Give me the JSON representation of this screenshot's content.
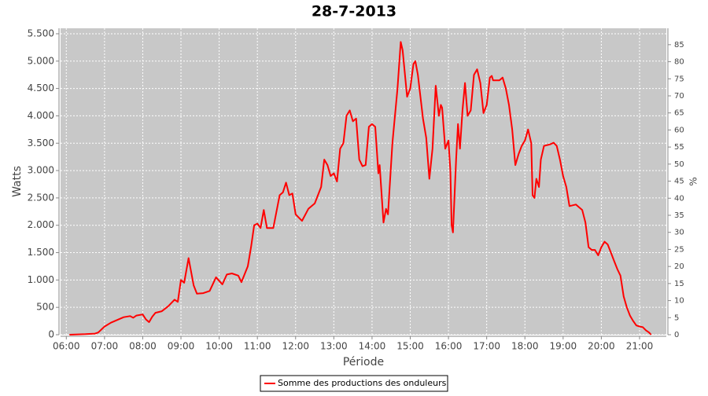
{
  "chart_data": {
    "type": "line",
    "title": "28-7-2013",
    "xlabel": "Période",
    "ylabel": "Watts",
    "y2label": "%",
    "x": [
      "06:05",
      "06:30",
      "06:45",
      "06:50",
      "07:00",
      "07:10",
      "07:20",
      "07:30",
      "07:40",
      "07:45",
      "07:50",
      "08:00",
      "08:05",
      "08:10",
      "08:15",
      "08:20",
      "08:30",
      "08:40",
      "08:50",
      "08:55",
      "09:00",
      "09:05",
      "09:12",
      "09:20",
      "09:25",
      "09:35",
      "09:45",
      "09:55",
      "10:05",
      "10:12",
      "10:20",
      "10:30",
      "10:35",
      "10:45",
      "10:50",
      "10:55",
      "11:00",
      "11:05",
      "11:10",
      "11:15",
      "11:25",
      "11:35",
      "11:40",
      "11:45",
      "11:50",
      "11:55",
      "12:00",
      "12:10",
      "12:20",
      "12:30",
      "12:40",
      "12:45",
      "12:50",
      "12:55",
      "13:00",
      "13:05",
      "13:10",
      "13:15",
      "13:20",
      "13:25",
      "13:30",
      "13:35",
      "13:40",
      "13:45",
      "13:50",
      "13:55",
      "14:00",
      "14:05",
      "14:10",
      "14:12",
      "14:18",
      "14:22",
      "14:25",
      "14:32",
      "14:40",
      "14:45",
      "14:48",
      "14:55",
      "15:00",
      "15:05",
      "15:08",
      "15:12",
      "15:20",
      "15:25",
      "15:30",
      "15:35",
      "15:40",
      "15:45",
      "15:48",
      "15:50",
      "15:55",
      "16:00",
      "16:03",
      "16:05",
      "16:07",
      "16:12",
      "16:15",
      "16:18",
      "16:22",
      "16:26",
      "16:30",
      "16:35",
      "16:40",
      "16:45",
      "16:50",
      "16:55",
      "17:00",
      "17:05",
      "17:08",
      "17:10",
      "17:20",
      "17:25",
      "17:30",
      "17:35",
      "17:40",
      "17:45",
      "17:50",
      "17:55",
      "18:00",
      "18:05",
      "18:10",
      "18:12",
      "18:15",
      "18:18",
      "18:22",
      "18:25",
      "18:30",
      "18:40",
      "18:45",
      "18:50",
      "18:55",
      "19:00",
      "19:05",
      "19:10",
      "19:20",
      "19:30",
      "19:35",
      "19:40",
      "19:45",
      "19:50",
      "19:55",
      "20:00",
      "20:05",
      "20:10",
      "20:15",
      "20:20",
      "20:25",
      "20:30",
      "20:35",
      "20:40",
      "20:45",
      "20:50",
      "20:55",
      "21:00",
      "21:05",
      "21:10",
      "21:15",
      "21:18"
    ],
    "series": [
      {
        "name": "Somme des productions des onduleurs",
        "color": "#ff0000",
        "values": [
          0,
          10,
          20,
          40,
          150,
          220,
          270,
          320,
          340,
          310,
          350,
          370,
          280,
          230,
          330,
          400,
          430,
          520,
          640,
          600,
          1000,
          950,
          1400,
          900,
          750,
          760,
          800,
          1050,
          920,
          1100,
          1120,
          1080,
          960,
          1250,
          1600,
          2000,
          2030,
          1950,
          2280,
          1950,
          1950,
          2550,
          2600,
          2780,
          2550,
          2580,
          2200,
          2080,
          2300,
          2400,
          2700,
          3200,
          3100,
          2900,
          2950,
          2800,
          3400,
          3500,
          4000,
          4100,
          3900,
          3950,
          3200,
          3080,
          3100,
          3800,
          3850,
          3800,
          2950,
          3100,
          2050,
          2300,
          2200,
          3500,
          4500,
          5350,
          5200,
          4350,
          4500,
          4950,
          5000,
          4750,
          3950,
          3600,
          2850,
          3400,
          4550,
          4000,
          4200,
          4150,
          3400,
          3550,
          3000,
          2000,
          1870,
          3200,
          3850,
          3400,
          4100,
          4600,
          4000,
          4100,
          4750,
          4850,
          4600,
          4050,
          4200,
          4700,
          4730,
          4650,
          4650,
          4700,
          4500,
          4200,
          3750,
          3100,
          3300,
          3450,
          3550,
          3750,
          3500,
          2550,
          2500,
          2850,
          2700,
          3200,
          3450,
          3480,
          3510,
          3450,
          3200,
          2900,
          2700,
          2350,
          2380,
          2280,
          2050,
          1600,
          1550,
          1550,
          1450,
          1600,
          1700,
          1650,
          1500,
          1350,
          1200,
          1080,
          700,
          500,
          350,
          250,
          170,
          150,
          140,
          80,
          40,
          0
        ]
      }
    ],
    "xlim": [
      "05:51",
      "21:42"
    ],
    "xticks": [
      "06:00",
      "07:00",
      "08:00",
      "09:00",
      "10:00",
      "11:00",
      "12:00",
      "13:00",
      "14:00",
      "15:00",
      "16:00",
      "17:00",
      "18:00",
      "19:00",
      "20:00",
      "21:00"
    ],
    "ylim": [
      0,
      5600
    ],
    "yticks": [
      0,
      500,
      {
        "value": 1000,
        "label": "1.000"
      },
      {
        "value": 1500,
        "label": "1.500"
      },
      {
        "value": 2000,
        "label": "2.000"
      },
      {
        "value": 2500,
        "label": "2.500"
      },
      {
        "value": 3000,
        "label": "3.000"
      },
      {
        "value": 3500,
        "label": "3.500"
      },
      {
        "value": 4000,
        "label": "4.000"
      },
      {
        "value": 4500,
        "label": "4.500"
      },
      {
        "value": 5000,
        "label": "5.000"
      },
      {
        "value": 5500,
        "label": "5.500"
      }
    ],
    "y2lim": [
      0,
      89.8
    ],
    "y2ticks": [
      0,
      5,
      10,
      15,
      20,
      25,
      30,
      35,
      40,
      45,
      50,
      55,
      60,
      65,
      70,
      75,
      80,
      85
    ],
    "grid": true,
    "legend": "bottom"
  }
}
